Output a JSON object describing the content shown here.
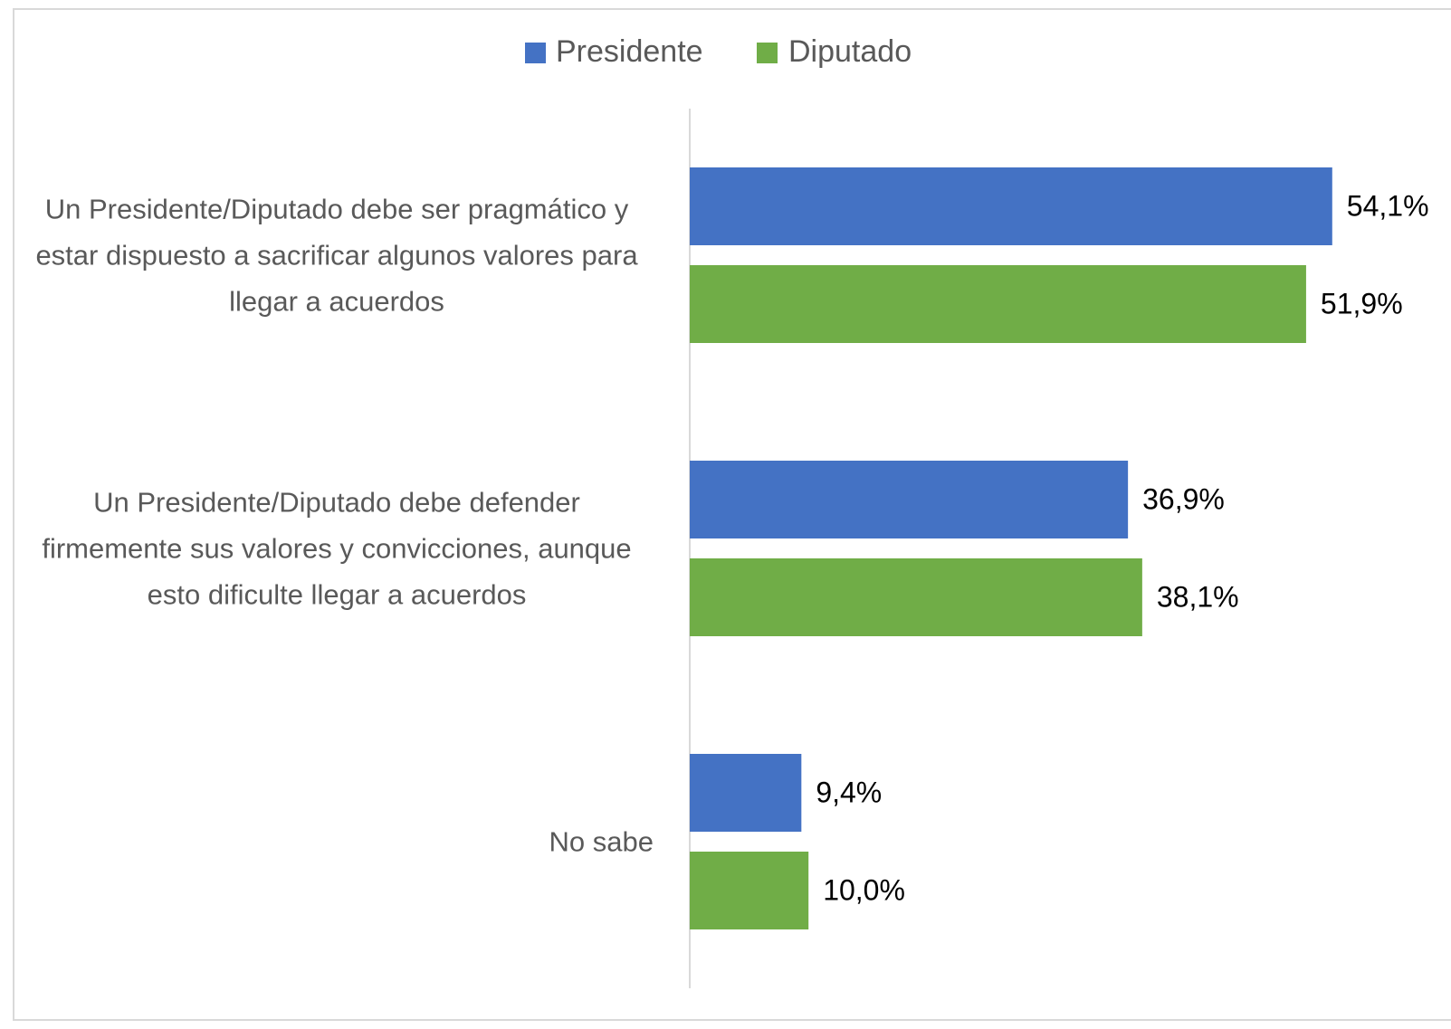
{
  "chart_data": {
    "type": "hbar",
    "categories": [
      "Un Presidente/Diputado debe ser pragmático y estar dispuesto a sacrificar algunos valores para llegar a acuerdos",
      "Un Presidente/Diputado debe defender firmemente sus valores y convicciones, aunque esto dificulte llegar a acuerdos",
      "No sabe"
    ],
    "series": [
      {
        "name": "Presidente",
        "color": "#4472c4",
        "values": [
          54.1,
          36.9,
          9.4
        ],
        "value_labels": [
          "54,1%",
          "36,9%",
          "9,4%"
        ]
      },
      {
        "name": "Diputado",
        "color": "#70ad47",
        "values": [
          51.9,
          38.1,
          10.0
        ],
        "value_labels": [
          "51,9%",
          "38,1%",
          "10,0%"
        ]
      }
    ],
    "xlim": [
      0,
      60
    ],
    "legend": "top"
  }
}
